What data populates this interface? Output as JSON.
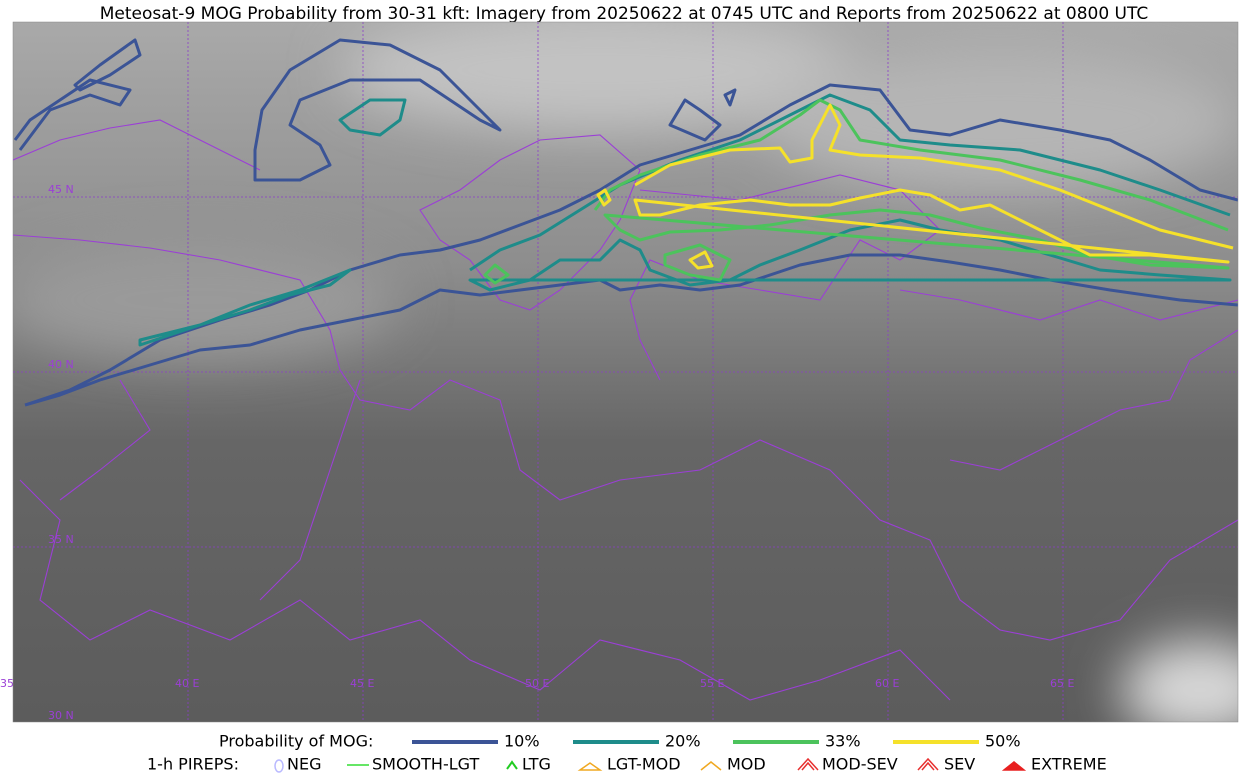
{
  "title": "Meteosat-9 MOG Probability from 30-31 kft: Imagery from 20250622 at 0745 UTC and Reports from 20250622 at 0800 UTC",
  "map": {
    "lat_labels": [
      "45 N",
      "40 N",
      "35 N",
      "30 N"
    ],
    "lon_labels": [
      "35",
      "40 E",
      "45 E",
      "50 E",
      "55 E",
      "60 E",
      "65 E"
    ]
  },
  "legend": {
    "probability": {
      "label": "Probability of MOG:",
      "items": [
        {
          "label": "10%",
          "color": "#3b5496"
        },
        {
          "label": "20%",
          "color": "#1e8c8a"
        },
        {
          "label": "33%",
          "color": "#4cc35c"
        },
        {
          "label": "50%",
          "color": "#f5e12a"
        }
      ]
    },
    "pireps": {
      "label": "1-h PIREPS:",
      "items": [
        "NEG",
        "SMOOTH-LGT",
        "LTG",
        "LGT-MOD",
        "MOD",
        "MOD-SEV",
        "SEV",
        "EXTREME"
      ]
    }
  }
}
